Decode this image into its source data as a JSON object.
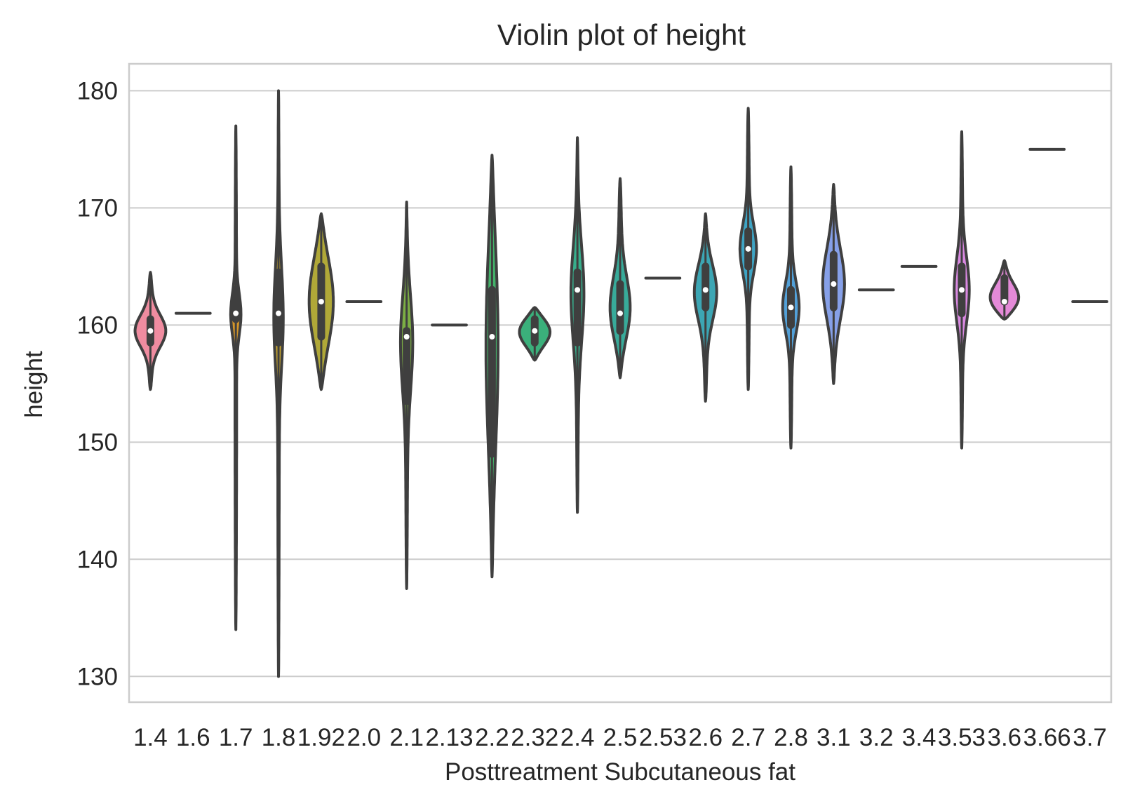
{
  "chart_data": {
    "type": "violin",
    "title": "Violin plot of height",
    "xlabel": "Posttreatment Subcutaneous fat",
    "ylabel": "height",
    "ylim": [
      127.8,
      182.3
    ],
    "yticks": [
      130,
      140,
      150,
      160,
      170,
      180
    ],
    "grid": "horizontal",
    "categories": [
      "1.4",
      "1.6",
      "1.7",
      "1.8",
      "1.92",
      "2.0",
      "2.1",
      "2.13",
      "2.2",
      "2.32",
      "2.4",
      "2.5",
      "2.53",
      "2.6",
      "2.7",
      "2.8",
      "3.1",
      "3.2",
      "3.4",
      "3.53",
      "3.6",
      "3.66",
      "3.7"
    ],
    "violins": [
      {
        "category": "1.4",
        "min": 154.5,
        "max": 164.5,
        "q1": 158.5,
        "q3": 160.5,
        "median": 159.5,
        "color": "#f08ca0"
      },
      {
        "category": "1.6",
        "min": 161,
        "max": 161,
        "q1": 161,
        "q3": 161,
        "median": 161,
        "color": "#ee8a78"
      },
      {
        "category": "1.7",
        "min": 134,
        "max": 177,
        "q1": 160.5,
        "q3": 163,
        "median": 161,
        "color": "#d4962a"
      },
      {
        "category": "1.8",
        "min": 130,
        "max": 180,
        "q1": 158.5,
        "q3": 164.5,
        "median": 161,
        "color": "#c0a030"
      },
      {
        "category": "1.92",
        "min": 154.5,
        "max": 169.5,
        "q1": 159,
        "q3": 165,
        "median": 162,
        "color": "#b0a838"
      },
      {
        "category": "2.0",
        "min": 162,
        "max": 162,
        "q1": 162,
        "q3": 162,
        "median": 162,
        "color": "#98aa3a"
      },
      {
        "category": "2.1",
        "min": 137.5,
        "max": 170.5,
        "q1": 153.5,
        "q3": 159.5,
        "median": 159,
        "color": "#7cae44"
      },
      {
        "category": "2.13",
        "min": 160,
        "max": 160,
        "q1": 160,
        "q3": 160,
        "median": 160,
        "color": "#58b254"
      },
      {
        "category": "2.2",
        "min": 138.5,
        "max": 174.5,
        "q1": 149,
        "q3": 163,
        "median": 159,
        "color": "#44b26a"
      },
      {
        "category": "2.32",
        "min": 157,
        "max": 161.5,
        "q1": 158.5,
        "q3": 160.5,
        "median": 159.5,
        "color": "#3bb07b"
      },
      {
        "category": "2.4",
        "min": 144,
        "max": 176,
        "q1": 158.5,
        "q3": 164.5,
        "median": 163,
        "color": "#38ae8c"
      },
      {
        "category": "2.5",
        "min": 155.5,
        "max": 172.5,
        "q1": 159.5,
        "q3": 163.5,
        "median": 161,
        "color": "#38ab9a"
      },
      {
        "category": "2.53",
        "min": 164,
        "max": 164,
        "q1": 164,
        "q3": 164,
        "median": 164,
        "color": "#3aa8a6"
      },
      {
        "category": "2.6",
        "min": 153.5,
        "max": 169.5,
        "q1": 161.5,
        "q3": 165,
        "median": 163,
        "color": "#3ca6b4"
      },
      {
        "category": "2.7",
        "min": 154.5,
        "max": 178.5,
        "q1": 165,
        "q3": 168,
        "median": 166.5,
        "color": "#3ea4c4"
      },
      {
        "category": "2.8",
        "min": 149.5,
        "max": 173.5,
        "q1": 160,
        "q3": 163,
        "median": 161.5,
        "color": "#52a0d8"
      },
      {
        "category": "3.1",
        "min": 155,
        "max": 172,
        "q1": 161.5,
        "q3": 166,
        "median": 163.5,
        "color": "#86a0e8"
      },
      {
        "category": "3.2",
        "min": 163,
        "max": 163,
        "q1": 163,
        "q3": 163,
        "median": 163,
        "color": "#a89aea"
      },
      {
        "category": "3.4",
        "min": 165,
        "max": 165,
        "q1": 165,
        "q3": 165,
        "median": 165,
        "color": "#c48ee8"
      },
      {
        "category": "3.53",
        "min": 149.5,
        "max": 176.5,
        "q1": 161,
        "q3": 165,
        "median": 163,
        "color": "#d888e0"
      },
      {
        "category": "3.6",
        "min": 160.5,
        "max": 165.5,
        "q1": 162,
        "q3": 164,
        "median": 162,
        "color": "#e48ad8"
      },
      {
        "category": "3.66",
        "min": 175,
        "max": 175,
        "q1": 175,
        "q3": 175,
        "median": 175,
        "color": "#ec88c8"
      },
      {
        "category": "3.7",
        "min": 162,
        "max": 162,
        "q1": 162,
        "q3": 162,
        "median": 162,
        "color": "#f08ab8"
      }
    ]
  }
}
